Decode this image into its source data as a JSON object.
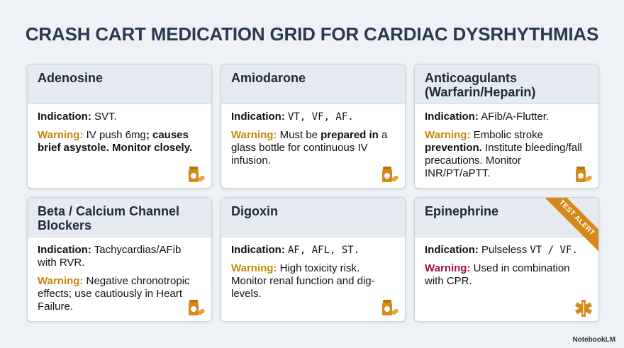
{
  "title": "CRASH CART MEDICATION GRID FOR CARDIAC DYSRHYTHMIAS",
  "indication_label": "Indication:",
  "warning_label": "Warning:",
  "warning_label_color": "#c8860a",
  "cards": [
    {
      "name": "Adenosine",
      "indication": [
        {
          "text": "SVT."
        }
      ],
      "warning": [
        {
          "text": "IV push 6mg"
        },
        {
          "text": "; causes brief asystole. Monitor closely.",
          "bold": true
        }
      ]
    },
    {
      "name": "Amiodarone",
      "indication": [
        {
          "text": "VT, VF, AF.",
          "mono": true
        }
      ],
      "warning": [
        {
          "text": "Must be "
        },
        {
          "text": "prepared in",
          "bold": true
        },
        {
          "text": " a glass bottle for continuous IV infusion."
        }
      ]
    },
    {
      "name": "Anticoagulants (Warfarin/Heparin)",
      "indication": [
        {
          "text": "AFib/A-Flutter."
        }
      ],
      "warning": [
        {
          "text": "Embolic stroke "
        },
        {
          "text": "prevention.",
          "bold": true
        },
        {
          "text": " Institute bleeding/fall precautions. Monitor INR/PT/aPTT."
        }
      ]
    },
    {
      "name": "Beta / Calcium Channel Blockers",
      "indication": [
        {
          "text": "Tachycardias/AFib with RVR."
        }
      ],
      "warning": [
        {
          "text": "Negative chronotropic effects; use cautiously in Heart Failure."
        }
      ]
    },
    {
      "name": "Digoxin",
      "indication": [
        {
          "text": "AF, AFL, ST.",
          "mono": true
        }
      ],
      "warning": [
        {
          "text": "High toxicity risk. Monitor renal function and dig-levels."
        }
      ]
    },
    {
      "name": "Epinephrine",
      "indication": [
        {
          "text": "Pulseless "
        },
        {
          "text": "VT / VF.",
          "mono": true
        }
      ],
      "warning": [
        {
          "text": "Used in combination with CPR."
        }
      ],
      "warning_label_color": "#a3123a",
      "ribbon": "TEST ALERT"
    }
  ],
  "footer": "NotebookLM"
}
